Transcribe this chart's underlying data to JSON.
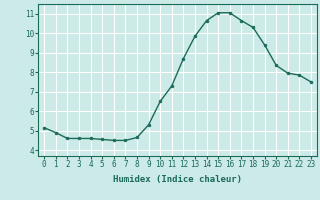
{
  "x": [
    0,
    1,
    2,
    3,
    4,
    5,
    6,
    7,
    8,
    9,
    10,
    11,
    12,
    13,
    14,
    15,
    16,
    17,
    18,
    19,
    20,
    21,
    22,
    23
  ],
  "y": [
    5.15,
    4.9,
    4.6,
    4.6,
    4.6,
    4.55,
    4.5,
    4.5,
    4.65,
    5.3,
    6.5,
    7.3,
    8.7,
    9.85,
    10.65,
    11.05,
    11.05,
    10.65,
    10.3,
    9.4,
    8.35,
    7.95,
    7.85,
    7.5
  ],
  "line_color": "#1a6b5a",
  "marker": "o",
  "marker_size": 2.0,
  "bg_color": "#cceae7",
  "grid_color": "#ffffff",
  "xlabel": "Humidex (Indice chaleur)",
  "ylim": [
    3.7,
    11.5
  ],
  "xlim": [
    -0.5,
    23.5
  ],
  "yticks": [
    4,
    5,
    6,
    7,
    8,
    9,
    10,
    11
  ],
  "xticks": [
    0,
    1,
    2,
    3,
    4,
    5,
    6,
    7,
    8,
    9,
    10,
    11,
    12,
    13,
    14,
    15,
    16,
    17,
    18,
    19,
    20,
    21,
    22,
    23
  ],
  "tick_fontsize": 5.5,
  "label_fontsize": 6.5,
  "line_width": 1.0
}
